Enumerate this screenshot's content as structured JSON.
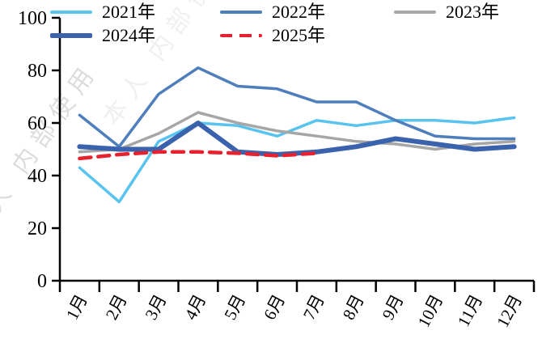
{
  "watermark": {
    "text": "本人 内部使用"
  },
  "chart_data": {
    "type": "line",
    "title": "",
    "xlabel": "",
    "ylabel": "",
    "ylim": [
      0,
      100
    ],
    "y_ticks": [
      0,
      20,
      40,
      60,
      80,
      100
    ],
    "grid": false,
    "legend_position": "top",
    "categories": [
      "1月",
      "2月",
      "3月",
      "4月",
      "5月",
      "6月",
      "7月",
      "8月",
      "9月",
      "10月",
      "11月",
      "12月"
    ],
    "series": [
      {
        "name": "2021年",
        "color": "#58C3EF",
        "width": 3.5,
        "dash": false,
        "values": [
          43,
          30,
          53,
          60,
          59,
          55,
          61,
          59,
          61,
          61,
          60,
          62
        ]
      },
      {
        "name": "2022年",
        "color": "#4E7EBB",
        "width": 3.5,
        "dash": false,
        "values": [
          63,
          51,
          71,
          81,
          74,
          73,
          68,
          68,
          61,
          55,
          54,
          54
        ]
      },
      {
        "name": "2023年",
        "color": "#A6A6A6",
        "width": 3.5,
        "dash": false,
        "values": [
          49,
          50,
          56,
          64,
          60,
          57,
          55,
          53,
          52,
          50,
          52,
          53
        ]
      },
      {
        "name": "2024年",
        "color": "#3A62AD",
        "width": 6,
        "dash": false,
        "values": [
          51,
          50,
          50,
          60,
          49,
          48,
          49,
          51,
          54,
          52,
          50,
          51
        ]
      },
      {
        "name": "2025年",
        "color": "#E8212E",
        "width": 4.5,
        "dash": true,
        "values": [
          46.5,
          48,
          49,
          49,
          48.5,
          47.5,
          48.5
        ]
      }
    ]
  }
}
